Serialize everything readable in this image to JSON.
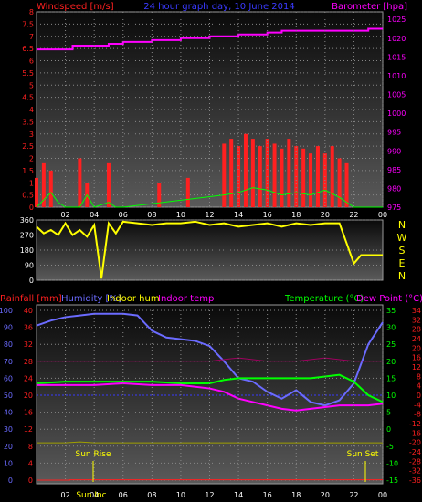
{
  "panel1": {
    "left_label": "Windspeed [m/s]",
    "title": "24 hour graph day, 10 June 2014",
    "right_label": "Barometer [hpa]",
    "colors": {
      "left": "#ff2020",
      "title": "#3a3aff",
      "right": "#ff00ff"
    }
  },
  "panel2": {
    "compass": [
      "N",
      "W",
      "S",
      "E",
      "N"
    ],
    "compass_color": "#ffff00"
  },
  "panel3": {
    "labels": [
      {
        "text": "Rainfall [mm]",
        "color": "#ff2020"
      },
      {
        "text": "Humidity [%]",
        "color": "#6b6bff"
      },
      {
        "text": "Indoor hum",
        "color": "#ffff00"
      },
      {
        "text": "Indoor temp",
        "color": "#ff00ff"
      }
    ],
    "right_labels": [
      {
        "text": "Temperature (°C)",
        "color": "#00ff00"
      },
      {
        "text": "Dew Point (°C)",
        "color": "#ff00ff"
      }
    ],
    "sunrise_label": "Sun Rise",
    "sunset_label": "Sun Set",
    "sun_mid_label": "Sun Inc"
  },
  "chart_data": [
    {
      "type": "line",
      "x_tick_labels": [
        "02",
        "04",
        "06",
        "08",
        "10",
        "12",
        "14",
        "16",
        "18",
        "20",
        "22",
        "00"
      ],
      "y_left_ticks": [
        "0",
        "0.5",
        "1",
        "1.5",
        "2",
        "2.5",
        "3",
        "3.5",
        "4",
        "4.5",
        "5",
        "5.5",
        "6",
        "6.5",
        "7",
        "7.5",
        "8"
      ],
      "y_right_ticks": [
        "975",
        "980",
        "985",
        "990",
        "995",
        "1000",
        "1005",
        "1010",
        "1015",
        "1020",
        "1025"
      ],
      "ylim_left": [
        0,
        8
      ],
      "ylim_right": [
        975,
        1027
      ],
      "series": [
        {
          "name": "Windspeed",
          "axis": "left",
          "color": "#ff2020",
          "x": [
            0,
            0.5,
            1,
            1.5,
            2,
            2.5,
            3,
            3.5,
            4,
            4.5,
            5,
            5.5,
            6,
            6.5,
            7,
            7.5,
            8,
            8.5,
            9,
            9.5,
            10,
            10.5,
            11,
            11.5,
            12,
            12.5,
            13,
            13.5,
            14,
            14.5,
            15,
            15.5,
            16,
            16.5,
            17,
            17.5,
            18,
            18.5,
            19,
            19.5,
            20,
            20.5,
            21,
            21.5,
            22,
            22.5,
            23,
            23.5,
            24
          ],
          "values": [
            1.2,
            1.8,
            1.5,
            0,
            0,
            0,
            2.0,
            1.0,
            0,
            0,
            1.8,
            0,
            0,
            0,
            0,
            0,
            0,
            1.0,
            0,
            0,
            0,
            1.2,
            0,
            0,
            0,
            0,
            2.6,
            2.8,
            2.5,
            3.0,
            2.8,
            2.5,
            2.8,
            2.6,
            2.4,
            2.8,
            2.5,
            2.4,
            2.2,
            2.5,
            2.2,
            2.5,
            2.0,
            1.8,
            0,
            0,
            0,
            0,
            0
          ]
        },
        {
          "name": "Gust",
          "axis": "left",
          "color": "#00ff00",
          "x": [
            0,
            1,
            1.5,
            2,
            3,
            3.5,
            4,
            5,
            5.5,
            6,
            13,
            14,
            15,
            16,
            17,
            18,
            19,
            20,
            21,
            22,
            24
          ],
          "values": [
            0,
            0.6,
            0.2,
            0,
            0,
            0.5,
            0,
            0.2,
            0,
            0,
            0.5,
            0.6,
            0.8,
            0.7,
            0.5,
            0.6,
            0.5,
            0.7,
            0.4,
            0,
            0
          ]
        },
        {
          "name": "Barometer",
          "axis": "right",
          "color": "#ff00ff",
          "x": [
            0,
            2,
            2.5,
            4,
            5,
            6,
            8,
            10,
            12,
            14,
            16,
            17,
            18,
            19,
            20,
            21,
            22,
            23,
            24
          ],
          "values": [
            1017,
            1017,
            1018,
            1018,
            1018.5,
            1019,
            1019.5,
            1020,
            1020.5,
            1021,
            1021.5,
            1022,
            1022,
            1022,
            1022,
            1022,
            1022,
            1022.5,
            1022.5
          ]
        }
      ]
    },
    {
      "type": "scatter",
      "x_tick_labels": [
        "02",
        "04",
        "06",
        "08",
        "10",
        "12",
        "14",
        "16",
        "18",
        "20",
        "22",
        "00"
      ],
      "y_ticks": [
        "0",
        "90",
        "180",
        "270",
        "360"
      ],
      "ylim": [
        0,
        360
      ],
      "series": [
        {
          "name": "Wind direction",
          "color": "#ffff00",
          "x": [
            0,
            0.5,
            1,
            1.5,
            2,
            2.5,
            3,
            3.5,
            4,
            4.5,
            5,
            5.5,
            6,
            7,
            8,
            9,
            10,
            11,
            12,
            13,
            14,
            15,
            16,
            17,
            18,
            19,
            20,
            21,
            22,
            22.5,
            23,
            24
          ],
          "values": [
            320,
            280,
            300,
            270,
            340,
            270,
            300,
            260,
            330,
            10,
            340,
            280,
            350,
            340,
            330,
            340,
            340,
            350,
            330,
            340,
            320,
            330,
            340,
            320,
            340,
            330,
            340,
            340,
            100,
            150,
            150,
            150
          ]
        }
      ]
    },
    {
      "type": "line",
      "x_tick_labels": [
        "02",
        "04",
        "06",
        "08",
        "10",
        "12",
        "14",
        "16",
        "18",
        "20",
        "22",
        "00"
      ],
      "y_left_outer_ticks": [
        "0",
        "10",
        "20",
        "30",
        "40",
        "50",
        "60",
        "70",
        "80",
        "90",
        "100"
      ],
      "y_left_inner_ticks": [
        "0",
        "4",
        "8",
        "12",
        "16",
        "20",
        "24",
        "28",
        "32",
        "36",
        "40"
      ],
      "y_right_inner_ticks": [
        "-15",
        "-10",
        "-5",
        "0",
        "5",
        "10",
        "15",
        "20",
        "25",
        "30",
        "35"
      ],
      "y_right_outer_ticks": [
        "-36",
        "-32",
        "-28",
        "-24",
        "-20",
        "-16",
        "-12",
        "-8",
        "-4",
        "0",
        "4",
        "8",
        "12",
        "16",
        "20",
        "24",
        "28",
        "32",
        "34"
      ],
      "ylim_humidity": [
        0,
        100
      ],
      "ylim_temperature": [
        -15,
        35
      ],
      "series": [
        {
          "name": "Humidity",
          "color": "#6b6bff",
          "x": [
            0,
            1,
            2,
            3,
            4,
            6,
            7,
            8,
            9,
            10,
            11,
            12,
            13,
            14,
            15,
            16,
            17,
            18,
            19,
            20,
            21,
            22,
            23,
            24
          ],
          "values": [
            91,
            94,
            96,
            97,
            98,
            98,
            97,
            88,
            84,
            83,
            82,
            79,
            70,
            60,
            58,
            52,
            48,
            53,
            46,
            44,
            47,
            57,
            80,
            93
          ]
        },
        {
          "name": "Temperature",
          "color": "#00ff00",
          "x": [
            0,
            2,
            4,
            6,
            8,
            10,
            12,
            13,
            14,
            15,
            16,
            17,
            18,
            19,
            20,
            21,
            22,
            23,
            24
          ],
          "values": [
            13.5,
            14,
            14,
            14,
            14,
            13.5,
            13.5,
            14.5,
            15,
            15,
            15,
            15,
            15,
            15,
            15.5,
            16,
            14,
            10,
            8
          ]
        },
        {
          "name": "Dew Point",
          "color": "#ff00ff",
          "x": [
            0,
            2,
            4,
            6,
            8,
            10,
            12,
            13,
            14,
            15,
            16,
            17,
            18,
            19,
            20,
            21,
            22,
            23,
            24
          ],
          "values": [
            13,
            13,
            13,
            13.5,
            13,
            13,
            12,
            11,
            9,
            8,
            7,
            6,
            5.5,
            6,
            6.5,
            7,
            7,
            7,
            7.5
          ]
        },
        {
          "name": "Indoor temp",
          "color": "#a00060",
          "x": [
            0,
            4,
            8,
            12,
            14,
            16,
            18,
            20,
            22,
            24
          ],
          "values": [
            20,
            20,
            20,
            20,
            21,
            20,
            20,
            21,
            20,
            20
          ]
        },
        {
          "name": "Indoor hum",
          "color": "#a0a000",
          "x": [
            0,
            2,
            3,
            4,
            8,
            12,
            16,
            20,
            24
          ],
          "values": [
            22,
            22,
            22.5,
            22,
            22,
            22,
            22,
            22,
            22
          ]
        },
        {
          "name": "Rainfall",
          "color": "#ff2020",
          "x": [
            0,
            2.3,
            2.3,
            24
          ],
          "values": [
            0,
            0,
            0.2,
            0.2
          ]
        }
      ]
    }
  ]
}
